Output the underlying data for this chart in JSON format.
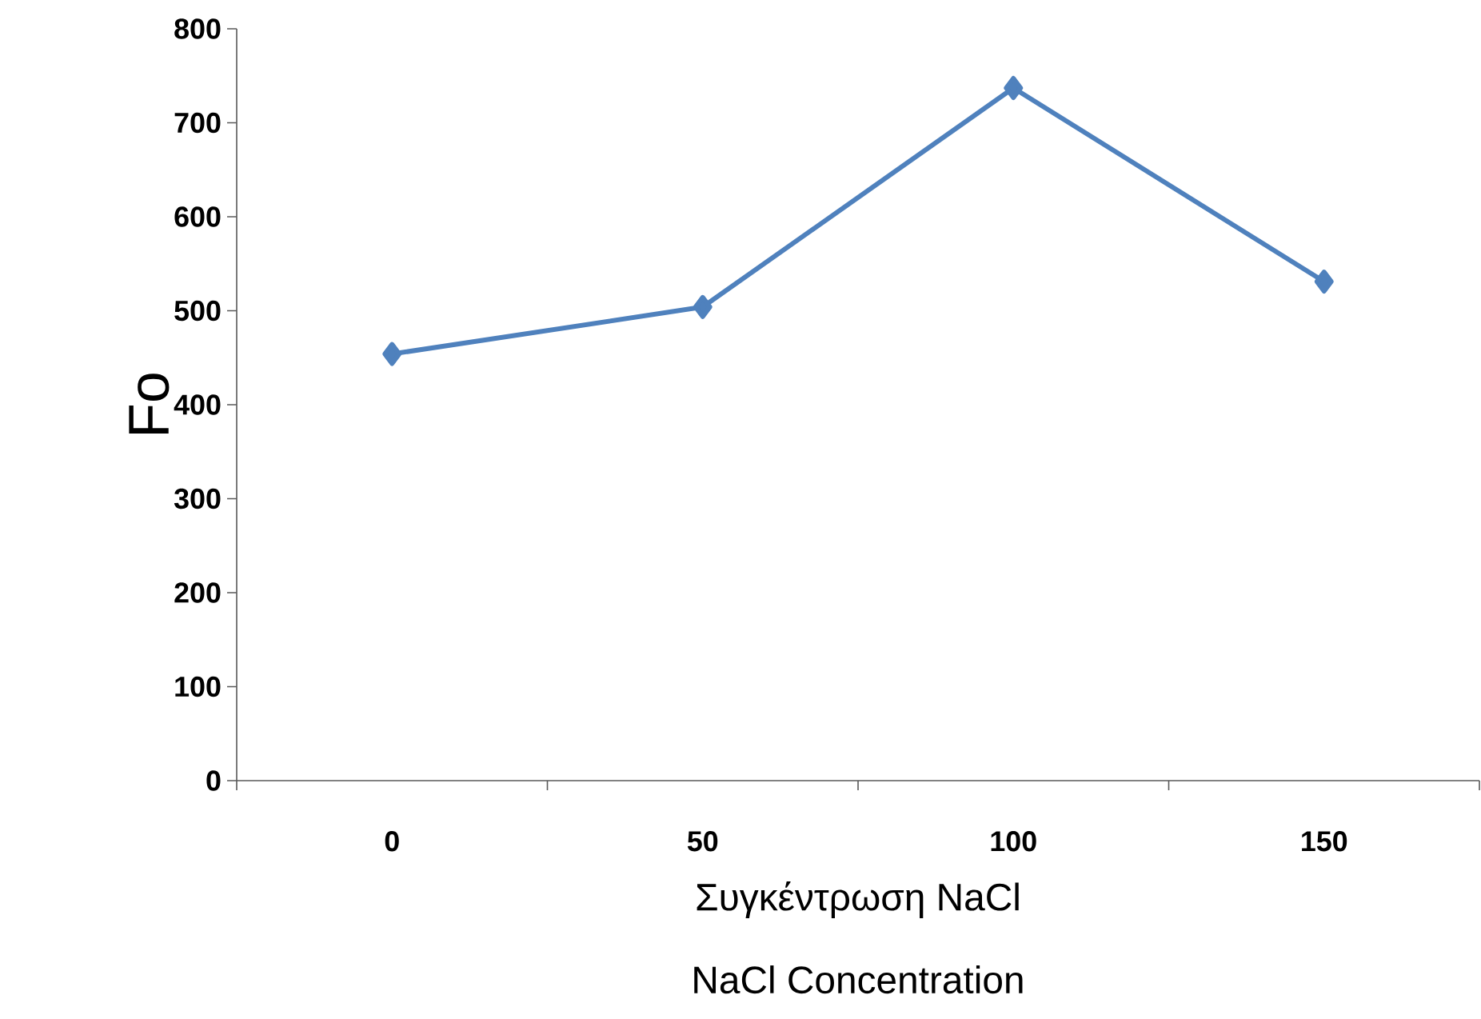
{
  "chart_data": {
    "type": "line",
    "categories": [
      "0",
      "50",
      "100",
      "150"
    ],
    "series": [
      {
        "color": "#4f81bd",
        "values": [
          454,
          504,
          737,
          531
        ]
      }
    ],
    "ylim": [
      0,
      800
    ],
    "yticks": [
      0,
      100,
      200,
      300,
      400,
      500,
      600,
      700,
      800
    ],
    "xlabel": "Συγκέντρωση NaCl",
    "ylabel": "Fo",
    "annotations": [
      "NaCl Concentration"
    ],
    "grid": false,
    "marker": "diamond",
    "line_style": "solid"
  }
}
